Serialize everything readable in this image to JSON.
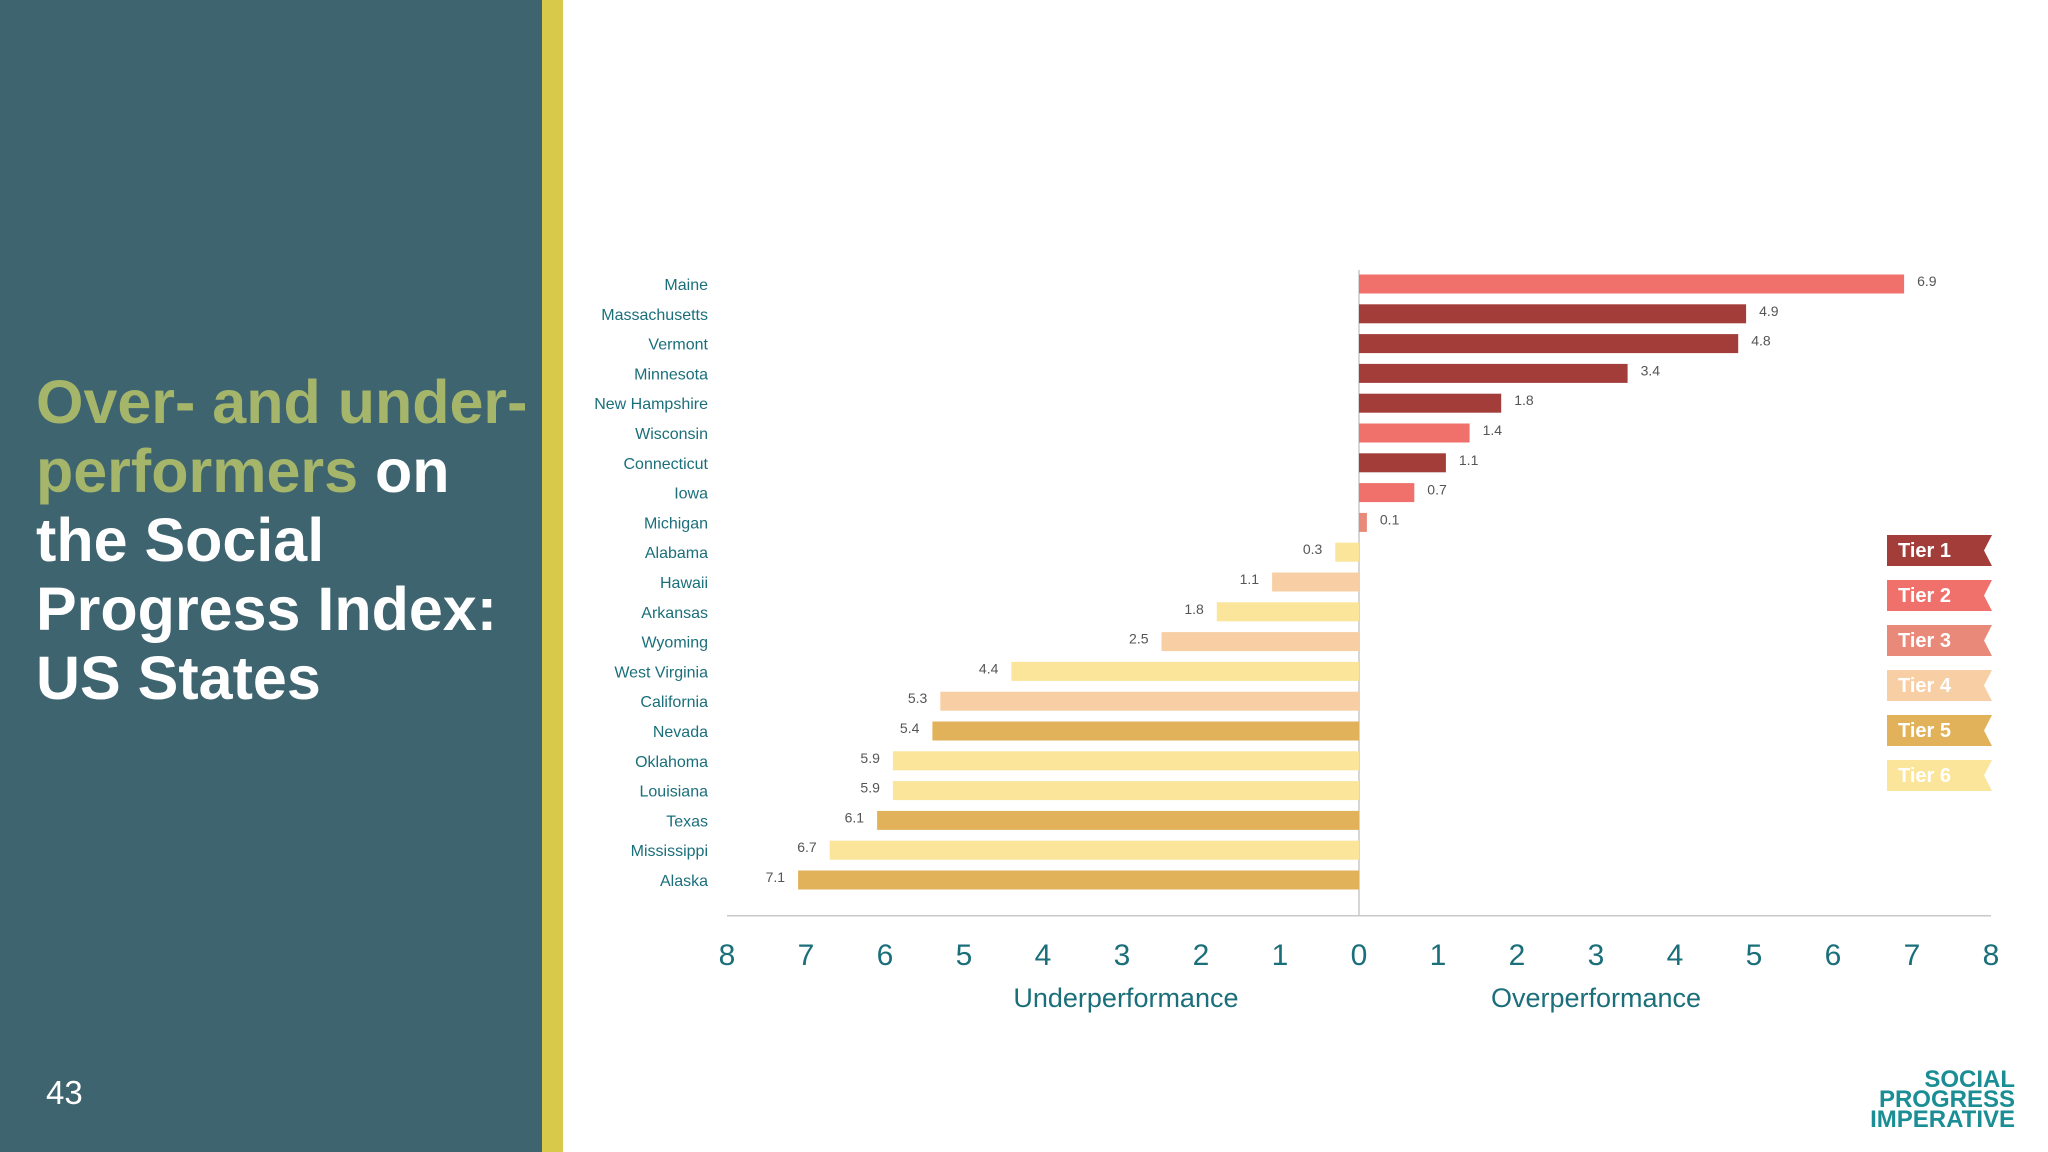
{
  "slide": {
    "title_part1": "Over- and under-performers",
    "title_part2": " on the Social Progress Index: US States",
    "page_number": "43"
  },
  "colors": {
    "panel": "#3e6470",
    "accent": "#d8c94a",
    "title_highlight": "#a5b56a",
    "axis_text": "#1a6f7a",
    "tiers": {
      "Tier 1": "#a23d3a",
      "Tier 2": "#f0716c",
      "Tier 3": "#e8897a",
      "Tier 4": "#f8cfa5",
      "Tier 5": "#e2b25a",
      "Tier 6": "#fbe59a"
    }
  },
  "logo": {
    "line1": "SOCIAL",
    "line2": "PROGRESS",
    "line3": "IMPERATIVE"
  },
  "chart_data": {
    "type": "bar",
    "orientation": "horizontal",
    "categories": [
      "Maine",
      "Massachusetts",
      "Vermont",
      "Minnesota",
      "New Hampshire",
      "Wisconsin",
      "Connecticut",
      "Iowa",
      "Michigan",
      "Alabama",
      "Hawaii",
      "Arkansas",
      "Wyoming",
      "West Virginia",
      "California",
      "Nevada",
      "Oklahoma",
      "Louisiana",
      "Texas",
      "Mississippi",
      "Alaska"
    ],
    "values": [
      6.9,
      4.9,
      4.8,
      3.4,
      1.8,
      1.4,
      1.1,
      0.7,
      0.1,
      -0.3,
      -1.1,
      -1.8,
      -2.5,
      -4.4,
      -5.3,
      -5.4,
      -5.9,
      -5.9,
      -6.1,
      -6.7,
      -7.1
    ],
    "value_labels": [
      "6.9",
      "4.9",
      "4.8",
      "3.4",
      "1.8",
      "1.4",
      "1.1",
      "0.7",
      "0.1",
      "0.3",
      "1.1",
      "1.8",
      "2.5",
      "4.4",
      "5.3",
      "5.4",
      "5.9",
      "5.9",
      "6.1",
      "6.7",
      "7.1"
    ],
    "tiers": [
      "Tier 2",
      "Tier 1",
      "Tier 1",
      "Tier 1",
      "Tier 1",
      "Tier 2",
      "Tier 1",
      "Tier 2",
      "Tier 3",
      "Tier 6",
      "Tier 4",
      "Tier 6",
      "Tier 4",
      "Tier 6",
      "Tier 4",
      "Tier 5",
      "Tier 6",
      "Tier 6",
      "Tier 5",
      "Tier 6",
      "Tier 5"
    ],
    "x_ticks": [
      "8",
      "7",
      "6",
      "5",
      "4",
      "3",
      "2",
      "1",
      "0",
      "1",
      "2",
      "3",
      "4",
      "5",
      "6",
      "7",
      "8"
    ],
    "xlim": [
      -8,
      8
    ],
    "xlabel_left": "Underperformance",
    "xlabel_right": "Overperformance",
    "legend": [
      "Tier 1",
      "Tier 2",
      "Tier 3",
      "Tier 4",
      "Tier 5",
      "Tier 6"
    ],
    "legend_position": "right"
  }
}
